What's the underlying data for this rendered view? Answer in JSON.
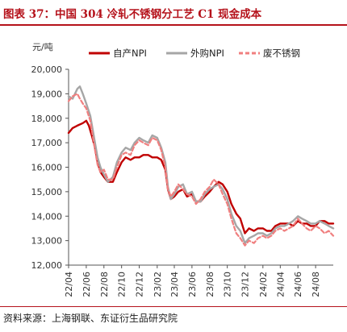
{
  "header": {
    "title": "图表 37：中国 304 冷轧不锈钢分工艺 C1 现金成本"
  },
  "footer": {
    "source": "资料来源：上海钢联、东证衍生品研究院"
  },
  "chart_data": {
    "type": "line",
    "title": "",
    "unit_label": "元/吨",
    "ylim": [
      12000,
      20000
    ],
    "yticks": [
      12000,
      13000,
      14000,
      15000,
      16000,
      17000,
      18000,
      19000,
      20000
    ],
    "ytick_labels": [
      "12,000",
      "13,000",
      "14,000",
      "15,000",
      "16,000",
      "17,000",
      "18,000",
      "19,000",
      "20,000"
    ],
    "xticks": [
      "22/04",
      "22/06",
      "22/08",
      "22/10",
      "22/12",
      "23/02",
      "23/04",
      "23/06",
      "23/08",
      "23/10",
      "23/12",
      "24/02",
      "24/04",
      "24/06",
      "24/08"
    ],
    "xlim": [
      "2022-04",
      "2024-10"
    ],
    "legend_position": "top",
    "grid": false,
    "series": [
      {
        "name": "自产NPI",
        "color": "#c00000",
        "style": "solid",
        "points": [
          [
            "2022-04",
            17400
          ],
          [
            "2022-04-15",
            17600
          ],
          [
            "2022-05",
            17700
          ],
          [
            "2022-05-20",
            17800
          ],
          [
            "2022-06",
            17900
          ],
          [
            "2022-06-10",
            17700
          ],
          [
            "2022-06-20",
            17300
          ],
          [
            "2022-07",
            16800
          ],
          [
            "2022-07-10",
            16200
          ],
          [
            "2022-07-20",
            15800
          ],
          [
            "2022-08",
            15600
          ],
          [
            "2022-08-15",
            15400
          ],
          [
            "2022-09",
            15400
          ],
          [
            "2022-09-15",
            15800
          ],
          [
            "2022-10",
            16200
          ],
          [
            "2022-10-15",
            16400
          ],
          [
            "2022-11",
            16300
          ],
          [
            "2022-11-15",
            16400
          ],
          [
            "2022-12",
            16400
          ],
          [
            "2022-12-15",
            16500
          ],
          [
            "2023-01",
            16500
          ],
          [
            "2023-01-15",
            16400
          ],
          [
            "2023-02",
            16400
          ],
          [
            "2023-02-15",
            16300
          ],
          [
            "2023-03",
            15900
          ],
          [
            "2023-03-10",
            15100
          ],
          [
            "2023-03-20",
            14700
          ],
          [
            "2023-04",
            14800
          ],
          [
            "2023-04-15",
            15000
          ],
          [
            "2023-05",
            15100
          ],
          [
            "2023-05-15",
            14800
          ],
          [
            "2023-06",
            14900
          ],
          [
            "2023-06-15",
            14600
          ],
          [
            "2023-07",
            14600
          ],
          [
            "2023-07-15",
            14800
          ],
          [
            "2023-08",
            15000
          ],
          [
            "2023-08-15",
            15200
          ],
          [
            "2023-09",
            15400
          ],
          [
            "2023-09-15",
            15300
          ],
          [
            "2023-10",
            15000
          ],
          [
            "2023-10-15",
            14500
          ],
          [
            "2023-11",
            14100
          ],
          [
            "2023-11-15",
            13900
          ],
          [
            "2023-12",
            13300
          ],
          [
            "2023-12-15",
            13500
          ],
          [
            "2024-01",
            13400
          ],
          [
            "2024-01-15",
            13500
          ],
          [
            "2024-02",
            13500
          ],
          [
            "2024-02-15",
            13400
          ],
          [
            "2024-03",
            13400
          ],
          [
            "2024-03-15",
            13600
          ],
          [
            "2024-04",
            13700
          ],
          [
            "2024-04-15",
            13700
          ],
          [
            "2024-05",
            13700
          ],
          [
            "2024-05-15",
            13600
          ],
          [
            "2024-06",
            13800
          ],
          [
            "2024-06-15",
            13700
          ],
          [
            "2024-07",
            13700
          ],
          [
            "2024-07-15",
            13600
          ],
          [
            "2024-08",
            13600
          ],
          [
            "2024-08-15",
            13800
          ],
          [
            "2024-09",
            13800
          ],
          [
            "2024-09-15",
            13700
          ],
          [
            "2024-10",
            13700
          ]
        ]
      },
      {
        "name": "外购NPI",
        "color": "#a6a6a6",
        "style": "solid",
        "points": [
          [
            "2022-04",
            18900
          ],
          [
            "2022-04-15",
            18800
          ],
          [
            "2022-05",
            19200
          ],
          [
            "2022-05-10",
            19300
          ],
          [
            "2022-05-20",
            19000
          ],
          [
            "2022-06",
            18600
          ],
          [
            "2022-06-15",
            18100
          ],
          [
            "2022-07",
            17000
          ],
          [
            "2022-07-10",
            16400
          ],
          [
            "2022-07-20",
            16000
          ],
          [
            "2022-08",
            15700
          ],
          [
            "2022-08-15",
            15400
          ],
          [
            "2022-09",
            15600
          ],
          [
            "2022-09-15",
            16200
          ],
          [
            "2022-10",
            16600
          ],
          [
            "2022-10-15",
            16800
          ],
          [
            "2022-11",
            16700
          ],
          [
            "2022-11-15",
            17000
          ],
          [
            "2022-12",
            17200
          ],
          [
            "2022-12-15",
            17100
          ],
          [
            "2023-01",
            17000
          ],
          [
            "2023-01-15",
            17300
          ],
          [
            "2023-02",
            17200
          ],
          [
            "2023-02-15",
            16800
          ],
          [
            "2023-03",
            16200
          ],
          [
            "2023-03-10",
            15200
          ],
          [
            "2023-03-20",
            14700
          ],
          [
            "2023-04",
            14900
          ],
          [
            "2023-04-15",
            15200
          ],
          [
            "2023-05",
            15300
          ],
          [
            "2023-05-15",
            14900
          ],
          [
            "2023-06",
            15000
          ],
          [
            "2023-06-15",
            14600
          ],
          [
            "2023-07",
            14600
          ],
          [
            "2023-07-15",
            14900
          ],
          [
            "2023-08",
            15100
          ],
          [
            "2023-08-15",
            15200
          ],
          [
            "2023-09",
            15300
          ],
          [
            "2023-09-15",
            15100
          ],
          [
            "2023-10",
            14700
          ],
          [
            "2023-10-15",
            14100
          ],
          [
            "2023-11",
            13600
          ],
          [
            "2023-11-15",
            13400
          ],
          [
            "2023-12",
            12900
          ],
          [
            "2023-12-15",
            13100
          ],
          [
            "2024-01",
            13200
          ],
          [
            "2024-01-15",
            13300
          ],
          [
            "2024-02",
            13300
          ],
          [
            "2024-02-15",
            13200
          ],
          [
            "2024-03",
            13300
          ],
          [
            "2024-03-15",
            13500
          ],
          [
            "2024-04",
            13600
          ],
          [
            "2024-04-15",
            13600
          ],
          [
            "2024-05",
            13700
          ],
          [
            "2024-05-15",
            13800
          ],
          [
            "2024-06",
            14000
          ],
          [
            "2024-06-15",
            13900
          ],
          [
            "2024-07",
            13800
          ],
          [
            "2024-07-15",
            13700
          ],
          [
            "2024-08",
            13700
          ],
          [
            "2024-08-15",
            13800
          ],
          [
            "2024-09",
            13700
          ],
          [
            "2024-09-15",
            13600
          ],
          [
            "2024-10",
            13500
          ]
        ]
      },
      {
        "name": "废不锈钢",
        "color": "#f07f7f",
        "style": "dashed",
        "points": [
          [
            "2022-04",
            18700
          ],
          [
            "2022-04-15",
            18900
          ],
          [
            "2022-05",
            19000
          ],
          [
            "2022-05-10",
            18800
          ],
          [
            "2022-05-20",
            18600
          ],
          [
            "2022-06",
            18400
          ],
          [
            "2022-06-15",
            17900
          ],
          [
            "2022-07",
            16700
          ],
          [
            "2022-07-10",
            16100
          ],
          [
            "2022-07-20",
            15800
          ],
          [
            "2022-08",
            15900
          ],
          [
            "2022-08-15",
            15500
          ],
          [
            "2022-09",
            15500
          ],
          [
            "2022-09-15",
            16000
          ],
          [
            "2022-10",
            16500
          ],
          [
            "2022-10-15",
            16600
          ],
          [
            "2022-11",
            16500
          ],
          [
            "2022-11-15",
            16900
          ],
          [
            "2022-12",
            17100
          ],
          [
            "2022-12-15",
            17000
          ],
          [
            "2023-01",
            16900
          ],
          [
            "2023-01-15",
            17200
          ],
          [
            "2023-02",
            17100
          ],
          [
            "2023-02-15",
            16700
          ],
          [
            "2023-03",
            16000
          ],
          [
            "2023-03-10",
            15100
          ],
          [
            "2023-03-20",
            14800
          ],
          [
            "2023-04",
            15000
          ],
          [
            "2023-04-15",
            15300
          ],
          [
            "2023-05",
            15100
          ],
          [
            "2023-05-15",
            14900
          ],
          [
            "2023-06",
            14800
          ],
          [
            "2023-06-15",
            14500
          ],
          [
            "2023-07",
            14700
          ],
          [
            "2023-07-15",
            15000
          ],
          [
            "2023-08",
            15200
          ],
          [
            "2023-08-15",
            15500
          ],
          [
            "2023-09",
            15300
          ],
          [
            "2023-09-15",
            14900
          ],
          [
            "2023-10",
            14500
          ],
          [
            "2023-10-15",
            13900
          ],
          [
            "2023-11",
            13300
          ],
          [
            "2023-11-15",
            13100
          ],
          [
            "2023-12",
            12800
          ],
          [
            "2023-12-15",
            13000
          ],
          [
            "2024-01",
            12900
          ],
          [
            "2024-01-15",
            13100
          ],
          [
            "2024-02",
            13200
          ],
          [
            "2024-02-15",
            13100
          ],
          [
            "2024-03",
            13200
          ],
          [
            "2024-03-15",
            13400
          ],
          [
            "2024-04",
            13500
          ],
          [
            "2024-04-15",
            13400
          ],
          [
            "2024-05",
            13500
          ],
          [
            "2024-05-15",
            13600
          ],
          [
            "2024-06",
            13900
          ],
          [
            "2024-06-15",
            13700
          ],
          [
            "2024-07",
            13500
          ],
          [
            "2024-07-15",
            13400
          ],
          [
            "2024-08",
            13600
          ],
          [
            "2024-08-15",
            13500
          ],
          [
            "2024-09",
            13300
          ],
          [
            "2024-09-15",
            13400
          ],
          [
            "2024-10",
            13200
          ]
        ]
      }
    ]
  }
}
